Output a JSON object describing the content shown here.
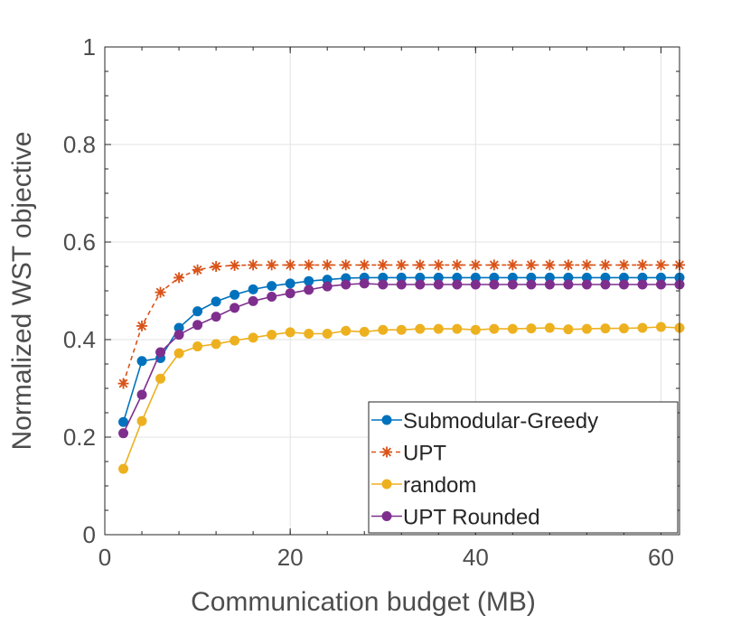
{
  "chart_data": {
    "type": "line",
    "title": "",
    "xlabel": "Communication budget (MB)",
    "ylabel": "Normalized WST objective",
    "xlim": [
      0,
      62
    ],
    "ylim": [
      0,
      1
    ],
    "xticks": [
      0,
      20,
      40,
      60
    ],
    "xtick_labels": [
      "0",
      "20",
      "40",
      "60"
    ],
    "yticks": [
      0,
      0.2,
      0.4,
      0.6,
      0.8,
      1
    ],
    "ytick_labels": [
      "0",
      "0.2",
      "0.4",
      "0.6",
      "0.8",
      "1"
    ],
    "grid": true,
    "legend": "bottom-right",
    "x": [
      2,
      4,
      6,
      8,
      10,
      12,
      14,
      16,
      18,
      20,
      22,
      24,
      26,
      28,
      30,
      32,
      34,
      36,
      38,
      40,
      42,
      44,
      46,
      48,
      50,
      52,
      54,
      56,
      58,
      60,
      62
    ],
    "series": [
      {
        "name": "Submodular-Greedy",
        "color": "#0072bd",
        "marker": "circle",
        "dashed": false,
        "values": [
          0.231,
          0.356,
          0.362,
          0.424,
          0.458,
          0.478,
          0.492,
          0.503,
          0.51,
          0.515,
          0.52,
          0.523,
          0.526,
          0.527,
          0.527,
          0.527,
          0.527,
          0.527,
          0.527,
          0.527,
          0.527,
          0.527,
          0.527,
          0.527,
          0.527,
          0.527,
          0.527,
          0.527,
          0.527,
          0.527,
          0.527
        ]
      },
      {
        "name": "UPT",
        "color": "#d95319",
        "marker": "star",
        "dashed": true,
        "values": [
          0.31,
          0.428,
          0.497,
          0.527,
          0.543,
          0.55,
          0.552,
          0.553,
          0.553,
          0.553,
          0.553,
          0.553,
          0.553,
          0.553,
          0.553,
          0.553,
          0.553,
          0.553,
          0.553,
          0.553,
          0.553,
          0.553,
          0.553,
          0.553,
          0.553,
          0.553,
          0.553,
          0.553,
          0.553,
          0.553,
          0.553
        ]
      },
      {
        "name": "random",
        "color": "#edb120",
        "marker": "circle",
        "dashed": false,
        "values": [
          0.135,
          0.233,
          0.32,
          0.372,
          0.386,
          0.391,
          0.398,
          0.404,
          0.41,
          0.415,
          0.412,
          0.412,
          0.418,
          0.416,
          0.42,
          0.42,
          0.422,
          0.422,
          0.422,
          0.42,
          0.422,
          0.422,
          0.423,
          0.424,
          0.421,
          0.422,
          0.423,
          0.423,
          0.424,
          0.426,
          0.424
        ]
      },
      {
        "name": "UPT Rounded",
        "color": "#7e2f8e",
        "marker": "circle",
        "dashed": false,
        "values": [
          0.208,
          0.287,
          0.374,
          0.41,
          0.43,
          0.447,
          0.465,
          0.479,
          0.488,
          0.495,
          0.502,
          0.509,
          0.513,
          0.515,
          0.513,
          0.513,
          0.513,
          0.513,
          0.513,
          0.513,
          0.513,
          0.513,
          0.513,
          0.513,
          0.513,
          0.513,
          0.513,
          0.513,
          0.513,
          0.513,
          0.513
        ]
      }
    ]
  }
}
